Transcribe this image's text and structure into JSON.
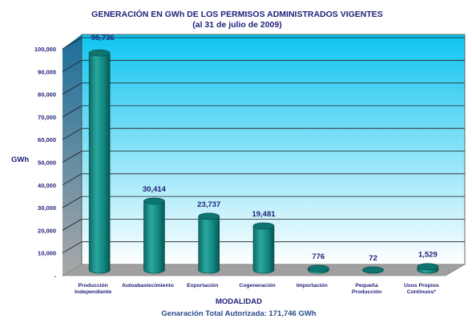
{
  "chart_data": {
    "type": "bar",
    "title": "GENERACIÓN EN GWh DE LOS PERMISOS ADMINISTRADOS VIGENTES",
    "subtitle": "(al 31 de julio de 2009)",
    "ylabel": "GWh",
    "xlabel": "MODALIDAD",
    "footer": "Genaración Total Autorizada: 171,746 GWh",
    "ylim": [
      0,
      100000
    ],
    "yticks": [
      "-",
      "10,000",
      "20,000",
      "30,000",
      "40,000",
      "50,000",
      "60,000",
      "70,000",
      "80,000",
      "90,000",
      "100,000"
    ],
    "categories": [
      [
        "Producción",
        "Independiente"
      ],
      [
        "Autoabastecimiento"
      ],
      [
        "Exportación"
      ],
      [
        "Cogeneración"
      ],
      [
        "Importación"
      ],
      [
        "Pequeña",
        "Producción"
      ],
      [
        "Usos Propios",
        "Continuos*"
      ]
    ],
    "values": [
      95736,
      30414,
      23737,
      19481,
      776,
      72,
      1529
    ],
    "value_labels": [
      "95,736",
      "30,414",
      "23,737",
      "19,481",
      "776",
      "72",
      "1,529"
    ],
    "grid": true,
    "colors": {
      "bar": "#0f7f7a",
      "bar_dark": "#075a56",
      "bar_light": "#35b5ac",
      "wall_top": "#12c6f0",
      "wall_bottom": "#ffffff",
      "side_wall": "#2d7fa8",
      "floor": "#9a9a9a",
      "text": "#1f1f7a"
    }
  }
}
